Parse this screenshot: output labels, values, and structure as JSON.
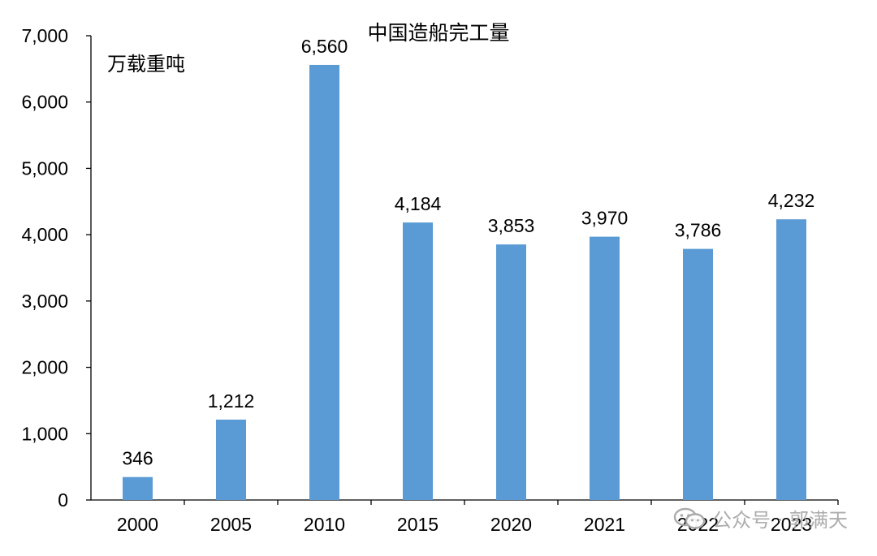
{
  "chart_data": {
    "type": "bar",
    "title": "中国造船完工量",
    "ylabel": "万载重吨",
    "xlabel": "",
    "categories": [
      "2000",
      "2005",
      "2010",
      "2015",
      "2020",
      "2021",
      "2022",
      "2023"
    ],
    "values": [
      346,
      1212,
      6560,
      4184,
      3853,
      3970,
      3786,
      4232
    ],
    "data_labels": [
      "346",
      "1,212",
      "6,560",
      "4,184",
      "3,853",
      "3,970",
      "3,786",
      "4,232"
    ],
    "ylim": [
      0,
      7000
    ],
    "yticks": [
      0,
      1000,
      2000,
      3000,
      4000,
      5000,
      6000,
      7000
    ],
    "ytick_labels": [
      "0",
      "1,000",
      "2,000",
      "3,000",
      "4,000",
      "5,000",
      "6,000",
      "7,000"
    ],
    "grid": false,
    "bar_color": "#5B9BD5",
    "axis_color": "#000000"
  },
  "watermark": {
    "text": "公众号 · 郭满天",
    "icon": "wechat-icon"
  }
}
